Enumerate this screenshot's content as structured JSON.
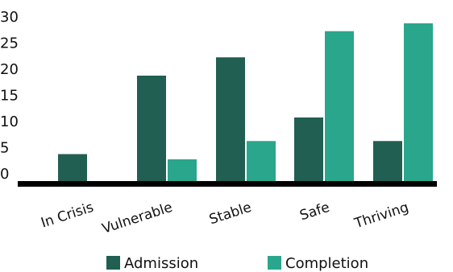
{
  "chart_data": {
    "type": "bar",
    "title": "",
    "xlabel": "",
    "ylabel": "",
    "categories": [
      "In Crisis",
      "Vulnerable",
      "Stable",
      "Safe",
      "Thriving"
    ],
    "series": [
      {
        "name": "Admission",
        "color": "#205f52",
        "values": [
          5,
          20,
          23.5,
          12,
          7.5
        ]
      },
      {
        "name": "Completion",
        "color": "#2aa68c",
        "values": [
          0,
          4,
          7.5,
          28.5,
          30
        ]
      }
    ],
    "yticks": [
      0,
      5,
      10,
      15,
      20,
      25,
      30
    ],
    "ylim": [
      0,
      30
    ],
    "grid": false,
    "legend_position": "bottom"
  }
}
